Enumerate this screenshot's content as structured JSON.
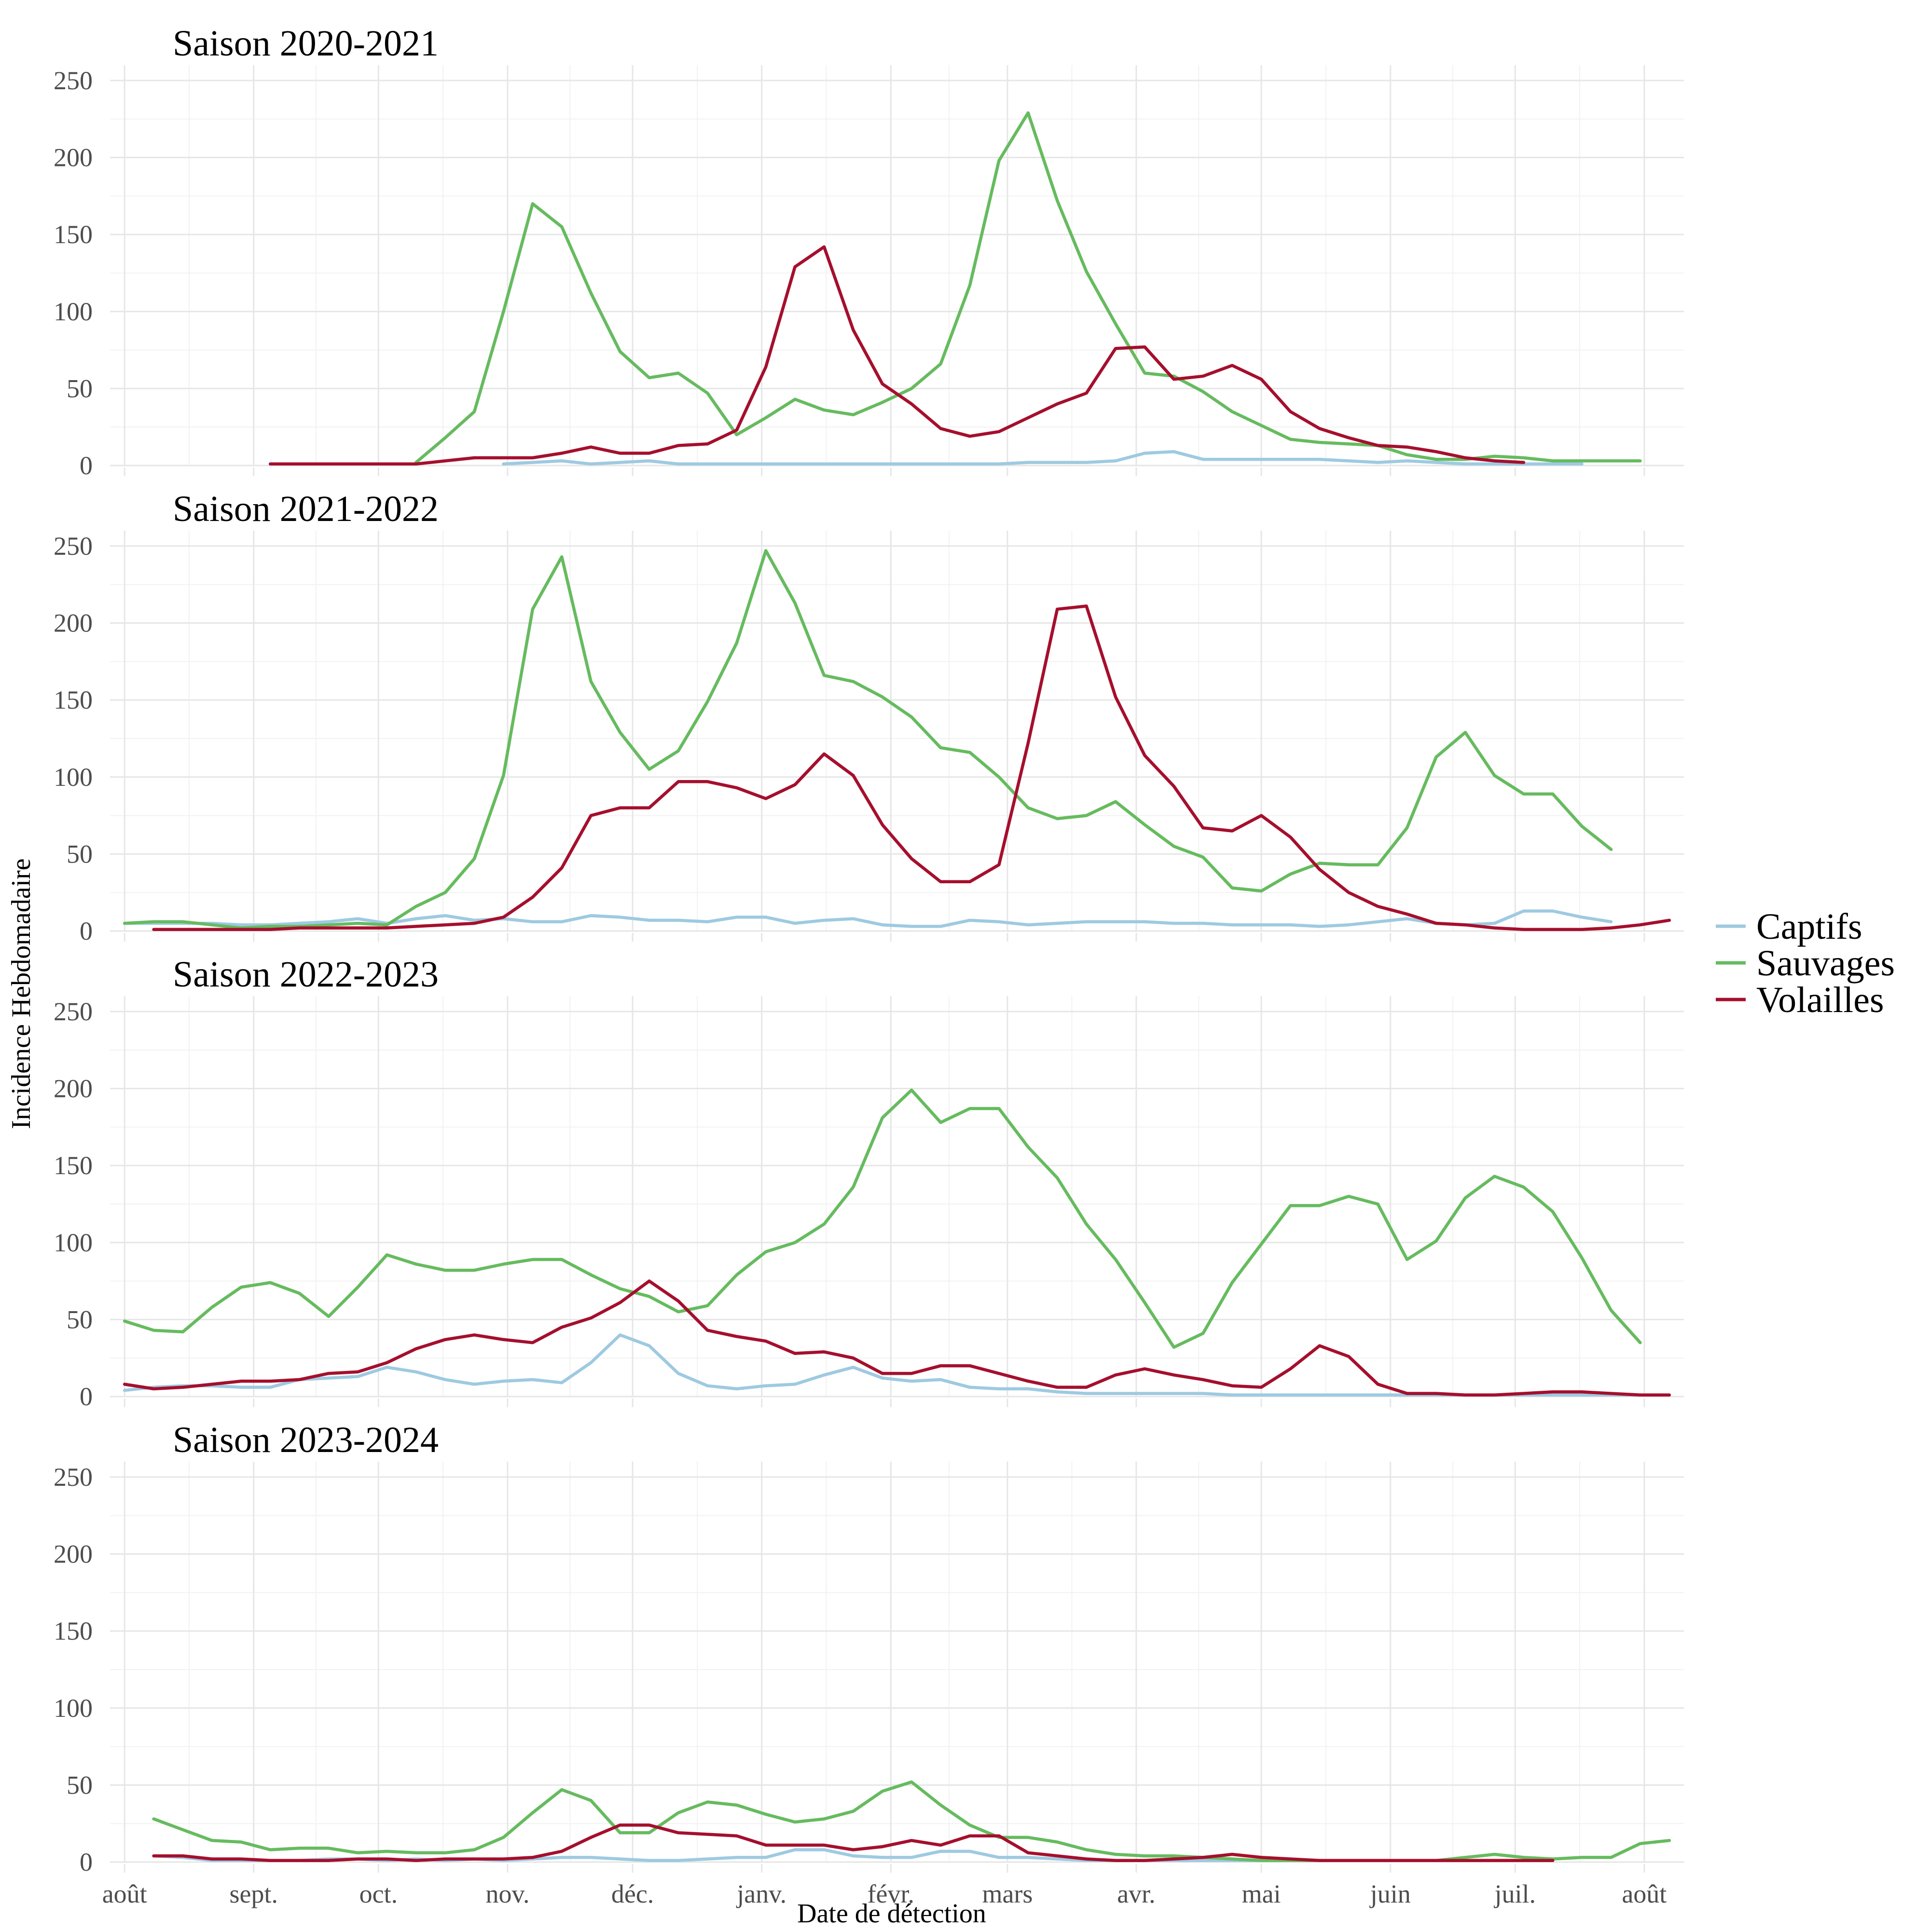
{
  "chart_data": {
    "type": "line",
    "xlabel": "Date de détection",
    "ylabel": "Incidence Hebdomadaire",
    "x_unit": "weeks since 1 August of the season start year",
    "x_range": [
      -0.5,
      53.5
    ],
    "ylim": [
      0,
      260
    ],
    "y_ticks": [
      0,
      50,
      100,
      150,
      200,
      250
    ],
    "x_ticks": [
      {
        "label": "août",
        "pos": 0
      },
      {
        "label": "sept.",
        "pos": 4.43
      },
      {
        "label": "oct.",
        "pos": 8.71
      },
      {
        "label": "nov.",
        "pos": 13.14
      },
      {
        "label": "déc.",
        "pos": 17.43
      },
      {
        "label": "janv.",
        "pos": 21.86
      },
      {
        "label": "févr.",
        "pos": 26.29
      },
      {
        "label": "mars",
        "pos": 30.29
      },
      {
        "label": "avr.",
        "pos": 34.71
      },
      {
        "label": "mai",
        "pos": 39
      },
      {
        "label": "juin",
        "pos": 43.43
      },
      {
        "label": "juil.",
        "pos": 47.71
      },
      {
        "label": "août",
        "pos": 52.14
      }
    ],
    "grid": true,
    "legend": {
      "position": "right",
      "entries": [
        {
          "name": "Captifs",
          "color": "#9ecae1"
        },
        {
          "name": "Sauvages",
          "color": "#66bb5f"
        },
        {
          "name": "Volailles",
          "color": "#a50f2d"
        }
      ]
    },
    "panels": [
      {
        "title": "Saison 2020-2021",
        "series": [
          {
            "name": "Captifs",
            "color": "#9ecae1",
            "start": 13,
            "values": [
              1,
              2,
              3,
              1,
              2,
              3,
              1,
              1,
              1,
              1,
              1,
              1,
              1,
              1,
              1,
              1,
              1,
              1,
              2,
              2,
              2,
              3,
              8,
              9,
              4,
              4,
              4,
              4,
              4,
              3,
              2,
              3,
              2,
              1,
              1,
              1,
              1,
              1
            ]
          },
          {
            "name": "Sauvages",
            "color": "#66bb5f",
            "start": 10,
            "values": [
              2,
              18,
              35,
              100,
              170,
              155,
              112,
              74,
              57,
              60,
              47,
              20,
              31,
              43,
              36,
              33,
              41,
              50,
              66,
              117,
              198,
              229,
              172,
              126,
              92,
              60,
              58,
              48,
              35,
              26,
              17,
              15,
              14,
              13,
              7,
              4,
              4,
              6,
              5,
              3,
              3,
              3,
              3
            ]
          },
          {
            "name": "Volailles",
            "color": "#a50f2d",
            "start": 5,
            "values": [
              1,
              1,
              1,
              1,
              1,
              1,
              3,
              5,
              5,
              5,
              8,
              12,
              8,
              8,
              13,
              14,
              23,
              64,
              129,
              142,
              88,
              53,
              40,
              24,
              19,
              22,
              31,
              40,
              47,
              76,
              77,
              56,
              58,
              65,
              56,
              35,
              24,
              18,
              13,
              12,
              9,
              5,
              3,
              2
            ]
          }
        ]
      },
      {
        "title": "Saison 2021-2022",
        "series": [
          {
            "name": "Captifs",
            "color": "#9ecae1",
            "start": 0,
            "values": [
              5,
              5,
              5,
              5,
              4,
              4,
              5,
              6,
              8,
              5,
              8,
              10,
              7,
              8,
              6,
              6,
              10,
              9,
              7,
              7,
              6,
              9,
              9,
              5,
              7,
              8,
              4,
              3,
              3,
              7,
              6,
              4,
              5,
              6,
              6,
              6,
              5,
              5,
              4,
              4,
              4,
              3,
              4,
              6,
              8,
              5,
              4,
              5,
              13,
              13,
              9,
              6
            ]
          },
          {
            "name": "Sauvages",
            "color": "#66bb5f",
            "start": 0,
            "values": [
              5,
              6,
              6,
              4,
              2,
              3,
              3,
              4,
              5,
              4,
              16,
              25,
              47,
              101,
              209,
              243,
              162,
              129,
              105,
              117,
              149,
              187,
              247,
              213,
              166,
              162,
              152,
              139,
              119,
              116,
              100,
              80,
              73,
              75,
              84,
              69,
              55,
              48,
              28,
              26,
              37,
              44,
              43,
              43,
              67,
              113,
              129,
              101,
              89,
              89,
              68,
              53
            ]
          },
          {
            "name": "Volailles",
            "color": "#a50f2d",
            "start": 1,
            "values": [
              1,
              1,
              1,
              1,
              1,
              2,
              2,
              2,
              2,
              3,
              4,
              5,
              9,
              22,
              41,
              75,
              80,
              80,
              97,
              97,
              93,
              86,
              95,
              115,
              101,
              69,
              47,
              32,
              32,
              43,
              122,
              209,
              211,
              152,
              114,
              94,
              67,
              65,
              75,
              61,
              40,
              25,
              16,
              11,
              5,
              4,
              2,
              1,
              1,
              1,
              2,
              4,
              7
            ]
          }
        ]
      },
      {
        "title": "Saison 2022-2023",
        "series": [
          {
            "name": "Captifs",
            "color": "#9ecae1",
            "start": 0,
            "values": [
              4,
              6,
              7,
              7,
              6,
              6,
              11,
              12,
              13,
              19,
              16,
              11,
              8,
              10,
              11,
              9,
              22,
              40,
              33,
              15,
              7,
              5,
              7,
              8,
              14,
              19,
              12,
              10,
              11,
              6,
              5,
              5,
              3,
              2,
              2,
              2,
              2,
              2,
              1,
              1,
              1,
              1,
              1,
              1,
              1,
              1,
              1,
              1,
              1,
              1,
              1,
              1,
              1,
              1
            ]
          },
          {
            "name": "Sauvages",
            "color": "#66bb5f",
            "start": 0,
            "values": [
              49,
              43,
              42,
              58,
              71,
              74,
              67,
              52,
              71,
              92,
              86,
              82,
              82,
              86,
              89,
              89,
              79,
              70,
              65,
              55,
              59,
              79,
              94,
              100,
              112,
              136,
              181,
              199,
              178,
              187,
              187,
              162,
              142,
              112,
              89,
              61,
              32,
              41,
              74,
              99,
              124,
              124,
              130,
              125,
              89,
              101,
              129,
              143,
              136,
              120,
              90,
              56,
              35
            ]
          },
          {
            "name": "Volailles",
            "color": "#a50f2d",
            "start": 0,
            "values": [
              8,
              5,
              6,
              8,
              10,
              10,
              11,
              15,
              16,
              22,
              31,
              37,
              40,
              37,
              35,
              45,
              51,
              61,
              75,
              62,
              43,
              39,
              36,
              28,
              29,
              25,
              15,
              15,
              20,
              20,
              15,
              10,
              6,
              6,
              14,
              18,
              14,
              11,
              7,
              6,
              18,
              33,
              26,
              8,
              2,
              2,
              1,
              1,
              2,
              3,
              3,
              2,
              1,
              1
            ]
          }
        ]
      },
      {
        "title": "Saison 2023-2024",
        "series": [
          {
            "name": "Captifs",
            "color": "#9ecae1",
            "start": 1,
            "values": [
              4,
              3,
              1,
              1,
              1,
              1,
              2,
              2,
              1,
              2,
              1,
              2,
              1,
              2,
              3,
              3,
              2,
              1,
              1,
              2,
              3,
              3,
              8,
              8,
              4,
              3,
              3,
              7,
              7,
              3,
              3,
              2,
              1,
              1,
              1,
              1,
              1,
              1,
              1,
              1,
              1,
              1,
              1,
              1,
              1,
              1,
              1,
              1,
              1
            ]
          },
          {
            "name": "Sauvages",
            "color": "#66bb5f",
            "start": 1,
            "values": [
              28,
              21,
              14,
              13,
              8,
              9,
              9,
              6,
              7,
              6,
              6,
              8,
              16,
              32,
              47,
              40,
              19,
              19,
              32,
              39,
              37,
              31,
              26,
              28,
              33,
              46,
              52,
              37,
              24,
              16,
              16,
              13,
              8,
              5,
              4,
              4,
              3,
              2,
              1,
              1,
              1,
              1,
              1,
              1,
              1,
              3,
              5,
              3,
              2,
              3,
              3,
              12,
              14
            ]
          },
          {
            "name": "Volailles",
            "color": "#a50f2d",
            "start": 1,
            "values": [
              4,
              4,
              2,
              2,
              1,
              1,
              1,
              2,
              2,
              1,
              2,
              2,
              2,
              3,
              7,
              16,
              24,
              24,
              19,
              18,
              17,
              11,
              11,
              11,
              8,
              10,
              14,
              11,
              17,
              17,
              6,
              4,
              2,
              1,
              1,
              2,
              3,
              5,
              3,
              2,
              1,
              1,
              1,
              1,
              1,
              1,
              1,
              1,
              1
            ]
          }
        ]
      }
    ]
  }
}
